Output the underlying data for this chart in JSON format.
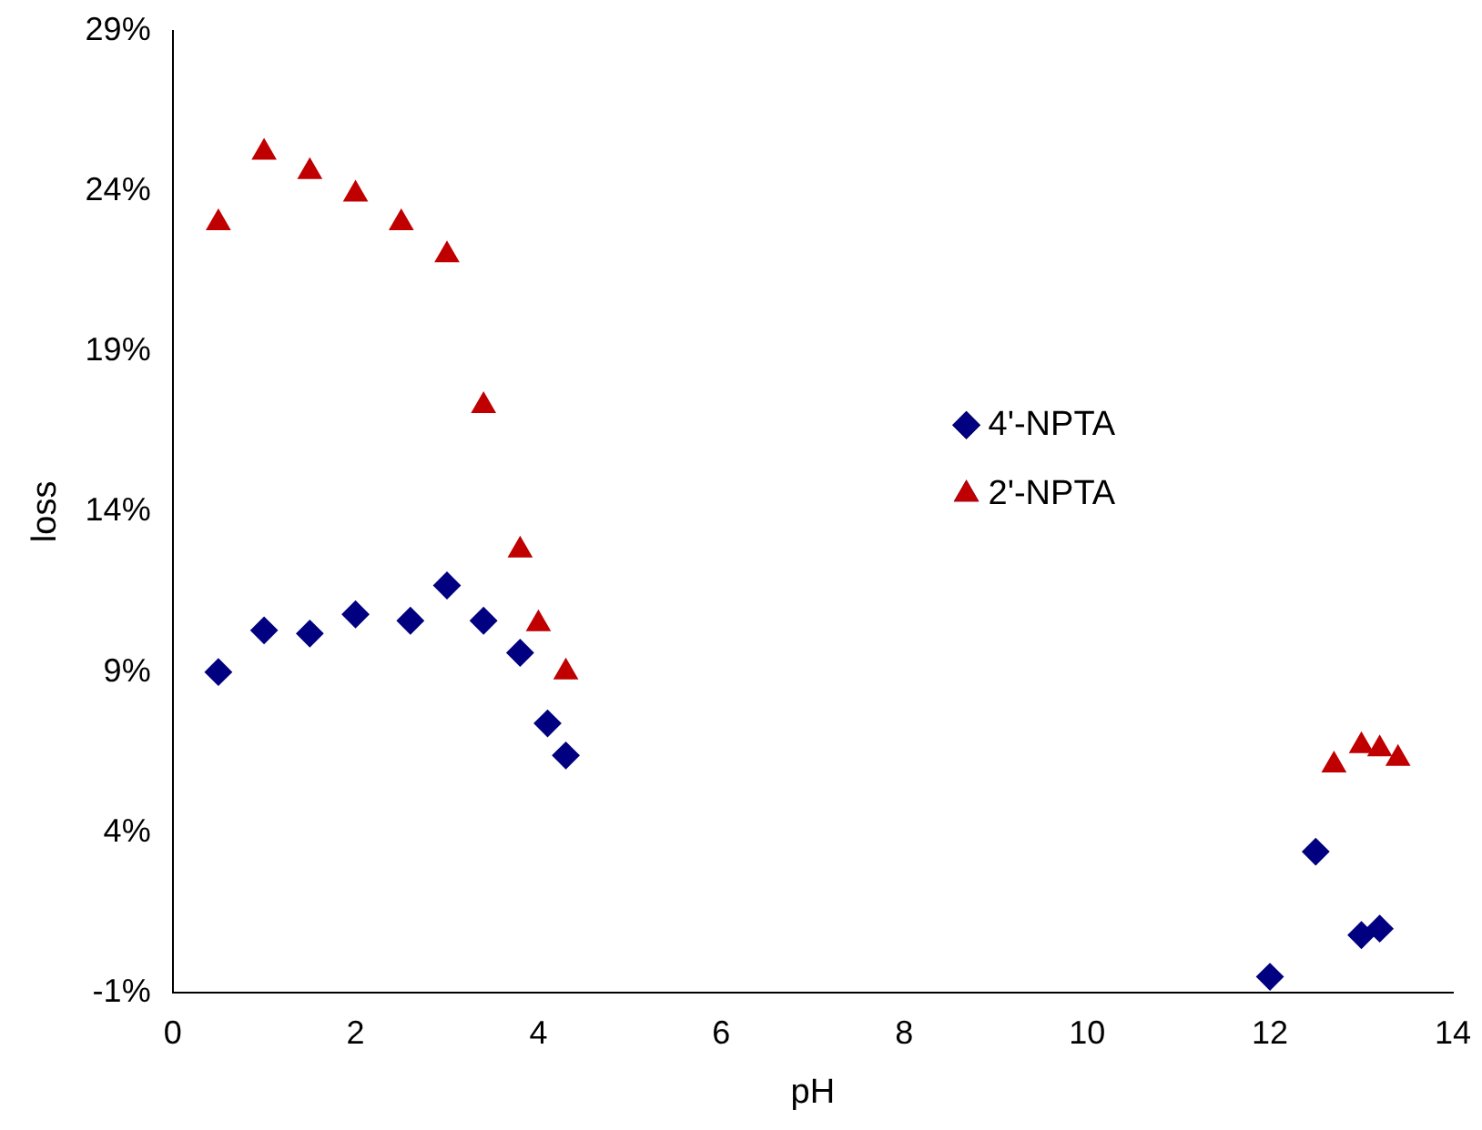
{
  "chart_data": {
    "type": "scatter",
    "xlabel": "pH",
    "ylabel": "loss",
    "xlim": [
      0,
      14
    ],
    "xticks": [
      0,
      2,
      4,
      6,
      8,
      10,
      12,
      14
    ],
    "ylim": [
      -1,
      29
    ],
    "yticks": [
      {
        "value": -1,
        "label": "-1%"
      },
      {
        "value": 4,
        "label": "4%"
      },
      {
        "value": 9,
        "label": "9%"
      },
      {
        "value": 14,
        "label": "14%"
      },
      {
        "value": 19,
        "label": "19%"
      },
      {
        "value": 24,
        "label": "24%"
      },
      {
        "value": 29,
        "label": "29%"
      }
    ],
    "grid": false,
    "legend": "right",
    "series": [
      {
        "name": "4'-NPTA",
        "color": "#000080",
        "marker": "diamond",
        "x": [
          0.5,
          1.0,
          1.5,
          2.0,
          2.6,
          3.0,
          3.4,
          3.8,
          4.1,
          4.3,
          12.0,
          12.5,
          13.0,
          13.2
        ],
        "values": [
          9.0,
          10.3,
          10.2,
          10.8,
          10.6,
          11.7,
          10.6,
          9.6,
          7.4,
          6.4,
          -0.5,
          3.4,
          0.8,
          1.0
        ]
      },
      {
        "name": "2'-NPTA",
        "color": "#c00000",
        "marker": "triangle",
        "x": [
          0.5,
          1.0,
          1.5,
          2.0,
          2.5,
          3.0,
          3.4,
          3.8,
          4.0,
          4.3,
          12.7,
          13.0,
          13.2,
          13.4
        ],
        "values": [
          23.0,
          25.2,
          24.6,
          23.9,
          23.0,
          22.0,
          17.3,
          12.8,
          10.5,
          9.0,
          6.1,
          6.7,
          6.6,
          6.3
        ]
      }
    ]
  }
}
